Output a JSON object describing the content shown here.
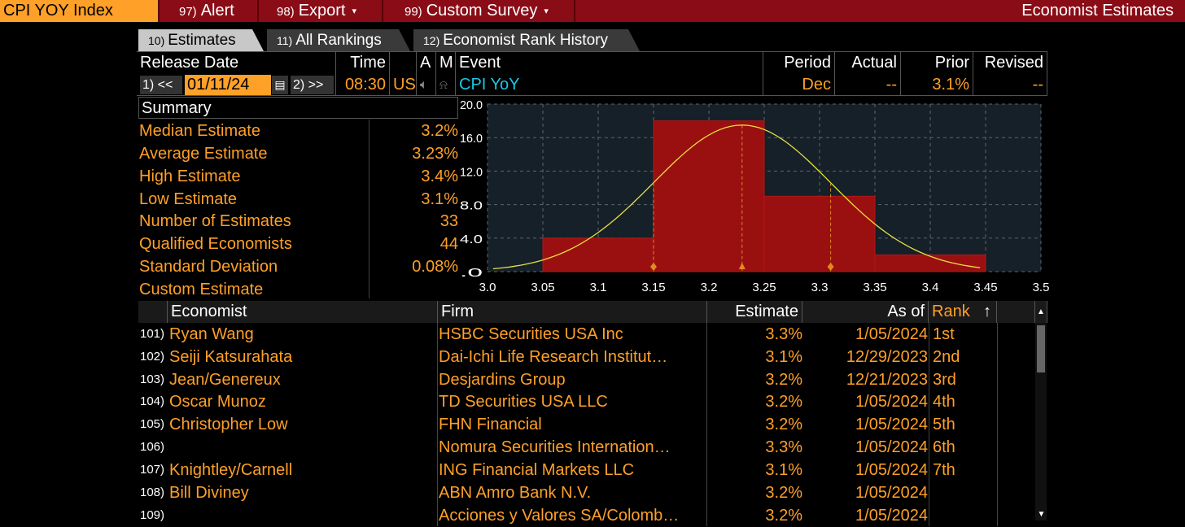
{
  "topbar": {
    "ticker": "CPI YOY Index",
    "menu": [
      {
        "num": "97)",
        "label": "Alert",
        "arrow": ""
      },
      {
        "num": "98)",
        "label": "Export",
        "arrow": "▾"
      },
      {
        "num": "99)",
        "label": "Custom Survey",
        "arrow": "▾"
      }
    ],
    "title": "Economist Estimates"
  },
  "tabs": [
    {
      "num": "10)",
      "label": "Estimates"
    },
    {
      "num": "11)",
      "label": "All Rankings"
    },
    {
      "num": "12)",
      "label": "Economist Rank History"
    }
  ],
  "header": {
    "release_date_label": "Release Date",
    "time_label": "Time",
    "a_label": "A",
    "m_label": "M",
    "event_label": "Event",
    "period_label": "Period",
    "actual_label": "Actual",
    "prior_label": "Prior",
    "revised_label": "Revised",
    "prev_btn": "1) <<",
    "date": "01/11/24",
    "next_btn": "2) >>",
    "time": "08:30",
    "country": "US",
    "event": "CPI YoY",
    "period": "Dec",
    "actual": "--",
    "prior": "3.1%",
    "revised": "--"
  },
  "summary": {
    "title": "Summary",
    "rows": [
      {
        "label": "Median Estimate",
        "value": "3.2%"
      },
      {
        "label": "Average Estimate",
        "value": "3.23%"
      },
      {
        "label": "High Estimate",
        "value": "3.4%"
      },
      {
        "label": "Low Estimate",
        "value": "3.1%"
      },
      {
        "label": "Number of Estimates",
        "value": "33"
      },
      {
        "label": "Qualified Economists",
        "value": "44"
      },
      {
        "label": "Standard Deviation",
        "value": "0.08%"
      },
      {
        "label": "Custom Estimate",
        "value": ""
      }
    ]
  },
  "chart_data": {
    "type": "bar",
    "bins": [
      {
        "from": 3.05,
        "to": 3.15,
        "value": 4
      },
      {
        "from": 3.15,
        "to": 3.25,
        "value": 18
      },
      {
        "from": 3.25,
        "to": 3.35,
        "value": 9
      },
      {
        "from": 3.35,
        "to": 3.45,
        "value": 2
      }
    ],
    "curve_peak": 17.5,
    "curve_mean": 3.23,
    "markers": [
      3.15,
      3.23,
      3.31
    ],
    "x_ticks": [
      "3.0",
      "3.05",
      "3.1",
      "3.15",
      "3.2",
      "3.25",
      "3.3",
      "3.35",
      "3.4",
      "3.45",
      "3.5"
    ],
    "xlim": [
      3.0,
      3.5
    ],
    "y_ticks": [
      "20.0",
      "16.0",
      "12.0",
      "8.0",
      "4.0",
      ".0"
    ],
    "ylim": [
      0,
      20
    ],
    "grid": true,
    "colors": {
      "bar": "#9a1010",
      "curve": "#e8e040",
      "marker": "#e08a20",
      "bg": "#152028"
    }
  },
  "table": {
    "headers": {
      "economist": "Economist",
      "firm": "Firm",
      "estimate": "Estimate",
      "as_of": "As of",
      "rank": "Rank",
      "sort_icon": "↑"
    },
    "rows": [
      {
        "num": "101)",
        "economist": "Ryan Wang",
        "firm": "HSBC Securities USA Inc",
        "estimate": "3.3%",
        "as_of": "1/05/2024",
        "rank": "1st"
      },
      {
        "num": "102)",
        "economist": "Seiji Katsurahata",
        "firm": "Dai-Ichi Life Research Institut…",
        "estimate": "3.1%",
        "as_of": "12/29/2023",
        "rank": "2nd"
      },
      {
        "num": "103)",
        "economist": "Jean/Genereux",
        "firm": "Desjardins Group",
        "estimate": "3.2%",
        "as_of": "12/21/2023",
        "rank": "3rd"
      },
      {
        "num": "104)",
        "economist": "Oscar Munoz",
        "firm": "TD Securities USA LLC",
        "estimate": "3.2%",
        "as_of": "1/05/2024",
        "rank": "4th"
      },
      {
        "num": "105)",
        "economist": "Christopher Low",
        "firm": "FHN Financial",
        "estimate": "3.2%",
        "as_of": "1/05/2024",
        "rank": "5th"
      },
      {
        "num": "106)",
        "economist": "",
        "firm": "Nomura Securities Internation…",
        "estimate": "3.3%",
        "as_of": "1/05/2024",
        "rank": "6th"
      },
      {
        "num": "107)",
        "economist": "Knightley/Carnell",
        "firm": "ING Financial Markets LLC",
        "estimate": "3.1%",
        "as_of": "1/05/2024",
        "rank": "7th"
      },
      {
        "num": "108)",
        "economist": "Bill Diviney",
        "firm": "ABN Amro Bank N.V.",
        "estimate": "3.2%",
        "as_of": "1/05/2024",
        "rank": ""
      },
      {
        "num": "109)",
        "economist": "",
        "firm": "Acciones y Valores SA/Colomb…",
        "estimate": "3.2%",
        "as_of": "1/05/2024",
        "rank": ""
      }
    ]
  }
}
